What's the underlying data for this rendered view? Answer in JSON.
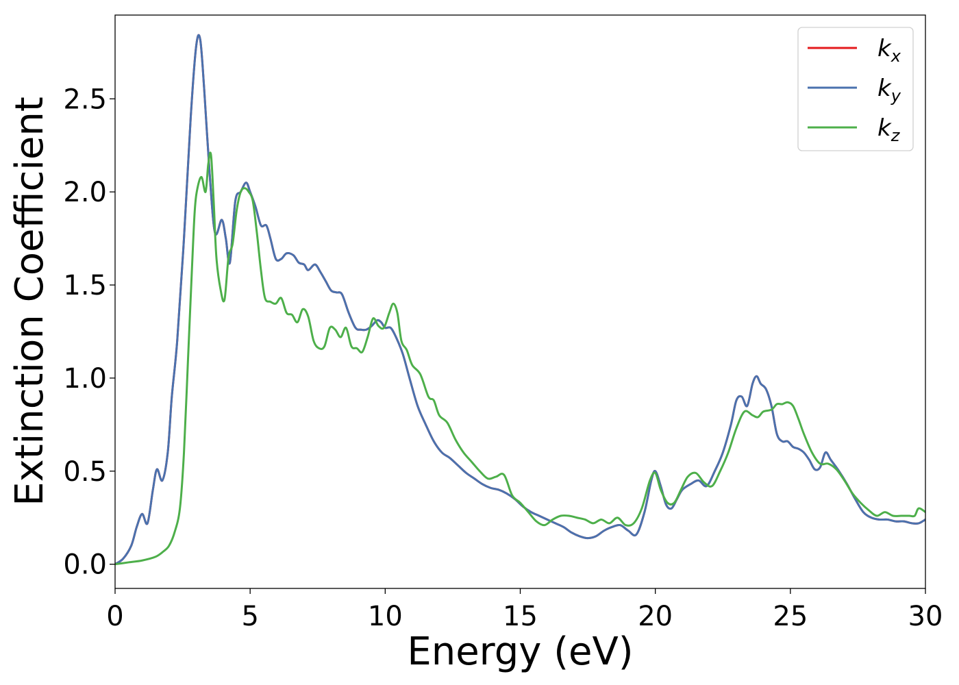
{
  "chart_data": {
    "type": "line",
    "title": "",
    "xlabel": "Energy (eV)",
    "ylabel": "Extinction Coefficient",
    "xlim": [
      0,
      30
    ],
    "ylim": [
      -0.13,
      2.95
    ],
    "xticks": [
      0,
      5,
      10,
      15,
      20,
      25,
      30
    ],
    "xtick_labels": [
      "0",
      "5",
      "10",
      "15",
      "20",
      "25",
      "30"
    ],
    "yticks": [
      0.0,
      0.5,
      1.0,
      1.5,
      2.0,
      2.5
    ],
    "ytick_labels": [
      "0.0",
      "0.5",
      "1.0",
      "1.5",
      "2.0",
      "2.5"
    ],
    "grid": false,
    "legend_position": "top-right",
    "series": [
      {
        "name": "k_x",
        "legend_base": "k",
        "legend_sub": "x",
        "color": "#e41a1c",
        "x": [
          0,
          0.3,
          0.6,
          0.8,
          1.0,
          1.2,
          1.4,
          1.55,
          1.75,
          1.95,
          2.1,
          2.3,
          2.55,
          2.8,
          3.0,
          3.15,
          3.3,
          3.5,
          3.7,
          3.95,
          4.1,
          4.25,
          4.45,
          4.65,
          4.85,
          5.0,
          5.2,
          5.4,
          5.6,
          5.75,
          5.95,
          6.15,
          6.35,
          6.6,
          6.8,
          7.0,
          7.15,
          7.4,
          7.6,
          7.8,
          8.0,
          8.2,
          8.4,
          8.65,
          8.9,
          9.1,
          9.3,
          9.5,
          9.7,
          9.85,
          10.0,
          10.2,
          10.4,
          10.65,
          10.9,
          11.2,
          11.5,
          11.8,
          12.1,
          12.4,
          12.7,
          13.0,
          13.3,
          13.6,
          13.9,
          14.2,
          14.5,
          14.8,
          15.1,
          15.4,
          15.7,
          16.0,
          16.3,
          16.6,
          16.9,
          17.2,
          17.5,
          17.8,
          18.1,
          18.4,
          18.7,
          19.0,
          19.3,
          19.6,
          19.85,
          20.0,
          20.2,
          20.4,
          20.6,
          20.8,
          21.0,
          21.3,
          21.6,
          21.9,
          22.2,
          22.5,
          22.8,
          23.0,
          23.2,
          23.4,
          23.6,
          23.75,
          23.9,
          24.1,
          24.3,
          24.5,
          24.7,
          24.9,
          25.1,
          25.3,
          25.5,
          25.7,
          25.9,
          26.1,
          26.3,
          26.5,
          26.8,
          27.1,
          27.4,
          27.7,
          28.0,
          28.3,
          28.6,
          28.9,
          29.2,
          29.5,
          29.75,
          30.0
        ],
        "y": [
          0.0,
          0.03,
          0.1,
          0.2,
          0.27,
          0.22,
          0.4,
          0.51,
          0.45,
          0.6,
          0.9,
          1.2,
          1.75,
          2.4,
          2.78,
          2.82,
          2.55,
          2.1,
          1.78,
          1.85,
          1.75,
          1.62,
          1.95,
          2.0,
          2.05,
          2.0,
          1.92,
          1.82,
          1.82,
          1.75,
          1.64,
          1.64,
          1.67,
          1.66,
          1.62,
          1.61,
          1.58,
          1.61,
          1.57,
          1.52,
          1.47,
          1.46,
          1.45,
          1.35,
          1.27,
          1.26,
          1.26,
          1.28,
          1.31,
          1.3,
          1.27,
          1.27,
          1.22,
          1.13,
          1.0,
          0.85,
          0.75,
          0.66,
          0.6,
          0.57,
          0.53,
          0.49,
          0.46,
          0.43,
          0.41,
          0.4,
          0.38,
          0.35,
          0.31,
          0.28,
          0.26,
          0.24,
          0.22,
          0.2,
          0.17,
          0.15,
          0.14,
          0.15,
          0.18,
          0.2,
          0.21,
          0.18,
          0.16,
          0.28,
          0.45,
          0.5,
          0.42,
          0.32,
          0.3,
          0.35,
          0.4,
          0.43,
          0.45,
          0.42,
          0.5,
          0.6,
          0.75,
          0.88,
          0.9,
          0.85,
          0.97,
          1.01,
          0.97,
          0.94,
          0.85,
          0.7,
          0.66,
          0.66,
          0.63,
          0.62,
          0.6,
          0.56,
          0.51,
          0.52,
          0.6,
          0.56,
          0.5,
          0.43,
          0.35,
          0.28,
          0.25,
          0.24,
          0.24,
          0.23,
          0.23,
          0.22,
          0.22,
          0.24
        ]
      },
      {
        "name": "k_y",
        "legend_base": "k",
        "legend_sub": "y",
        "color": "#4a72ae",
        "same_as": "k_x"
      },
      {
        "name": "k_z",
        "legend_base": "k",
        "legend_sub": "z",
        "color": "#4daf4a",
        "x": [
          0,
          0.5,
          1.0,
          1.5,
          1.8,
          2.0,
          2.2,
          2.4,
          2.55,
          2.7,
          2.85,
          2.95,
          3.05,
          3.2,
          3.35,
          3.45,
          3.55,
          3.65,
          3.75,
          3.9,
          4.05,
          4.2,
          4.35,
          4.5,
          4.65,
          4.8,
          4.95,
          5.1,
          5.25,
          5.4,
          5.55,
          5.75,
          5.95,
          6.15,
          6.35,
          6.55,
          6.75,
          6.95,
          7.15,
          7.35,
          7.55,
          7.75,
          7.95,
          8.15,
          8.35,
          8.55,
          8.75,
          8.95,
          9.15,
          9.35,
          9.55,
          9.75,
          9.95,
          10.15,
          10.3,
          10.45,
          10.6,
          10.8,
          11.0,
          11.3,
          11.6,
          11.8,
          12.0,
          12.3,
          12.6,
          12.9,
          13.2,
          13.5,
          13.8,
          14.1,
          14.4,
          14.7,
          15.0,
          15.3,
          15.6,
          15.9,
          16.2,
          16.5,
          16.8,
          17.1,
          17.4,
          17.7,
          18.0,
          18.3,
          18.6,
          18.9,
          19.2,
          19.5,
          19.8,
          20.0,
          20.2,
          20.45,
          20.7,
          20.95,
          21.2,
          21.5,
          21.8,
          22.1,
          22.4,
          22.7,
          23.0,
          23.3,
          23.6,
          23.8,
          24.0,
          24.3,
          24.5,
          24.7,
          24.9,
          25.1,
          25.3,
          25.5,
          25.8,
          26.1,
          26.4,
          26.7,
          27.0,
          27.3,
          27.6,
          27.9,
          28.2,
          28.5,
          28.8,
          29.1,
          29.4,
          29.6,
          29.75,
          30.0
        ],
        "y": [
          0.0,
          0.01,
          0.02,
          0.04,
          0.07,
          0.1,
          0.17,
          0.3,
          0.6,
          1.1,
          1.6,
          1.9,
          2.02,
          2.08,
          2.0,
          2.15,
          2.2,
          1.95,
          1.65,
          1.48,
          1.42,
          1.65,
          1.72,
          1.9,
          2.0,
          2.02,
          2.0,
          1.95,
          1.78,
          1.58,
          1.43,
          1.41,
          1.4,
          1.43,
          1.35,
          1.34,
          1.3,
          1.37,
          1.33,
          1.2,
          1.16,
          1.17,
          1.27,
          1.26,
          1.22,
          1.27,
          1.17,
          1.16,
          1.14,
          1.22,
          1.32,
          1.28,
          1.27,
          1.35,
          1.4,
          1.35,
          1.2,
          1.15,
          1.07,
          1.02,
          0.9,
          0.88,
          0.8,
          0.76,
          0.67,
          0.6,
          0.55,
          0.5,
          0.46,
          0.47,
          0.48,
          0.37,
          0.33,
          0.28,
          0.23,
          0.21,
          0.24,
          0.26,
          0.26,
          0.25,
          0.24,
          0.22,
          0.24,
          0.22,
          0.25,
          0.21,
          0.22,
          0.3,
          0.45,
          0.49,
          0.4,
          0.33,
          0.33,
          0.4,
          0.47,
          0.49,
          0.44,
          0.42,
          0.5,
          0.6,
          0.73,
          0.82,
          0.8,
          0.79,
          0.82,
          0.83,
          0.86,
          0.86,
          0.87,
          0.85,
          0.78,
          0.7,
          0.6,
          0.54,
          0.54,
          0.51,
          0.45,
          0.38,
          0.33,
          0.29,
          0.26,
          0.28,
          0.26,
          0.26,
          0.26,
          0.26,
          0.3,
          0.28
        ]
      }
    ]
  }
}
